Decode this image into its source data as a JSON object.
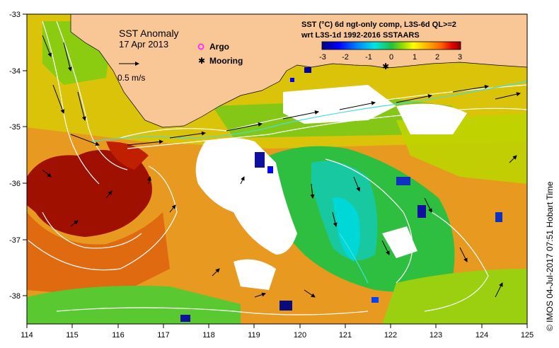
{
  "map": {
    "title": "SST Anomaly",
    "date": "17 Apr 2013",
    "velocity_scale_label": "0.5 m/s",
    "legend": {
      "argo_label": "Argo",
      "mooring_label": "Mooring",
      "argo_color": "#ff33ff",
      "mooring_color": "#000000"
    },
    "colorbar": {
      "title_line1": "SST (°C) 6d ngt-only comp, L3S-6d QL>=2",
      "title_line2": "wrt L3S-1d 1992-2016 SSTAARS",
      "ticks": [
        "-3",
        "-2",
        "-1",
        "0",
        "1",
        "2",
        "3"
      ],
      "min": -3,
      "max": 3,
      "colors": [
        "#00007f",
        "#0000ff",
        "#0080ff",
        "#00e5e5",
        "#20c040",
        "#8fdc00",
        "#ffff00",
        "#ffb000",
        "#ff6000",
        "#e00000",
        "#8b0000"
      ]
    },
    "x_ticks": [
      "114",
      "115",
      "116",
      "117",
      "118",
      "119",
      "120",
      "121",
      "122",
      "123",
      "124",
      "125"
    ],
    "y_ticks": [
      "-33",
      "-34",
      "-35",
      "-36",
      "-37",
      "-38"
    ],
    "lon_range": [
      114,
      125
    ],
    "lat_range": [
      -38.5,
      -33
    ],
    "credit": "© IMOS 04-Jul-2017 07:51 Hobart Time",
    "land_color": "#f9c695",
    "no_data_color": "#ffffff"
  }
}
